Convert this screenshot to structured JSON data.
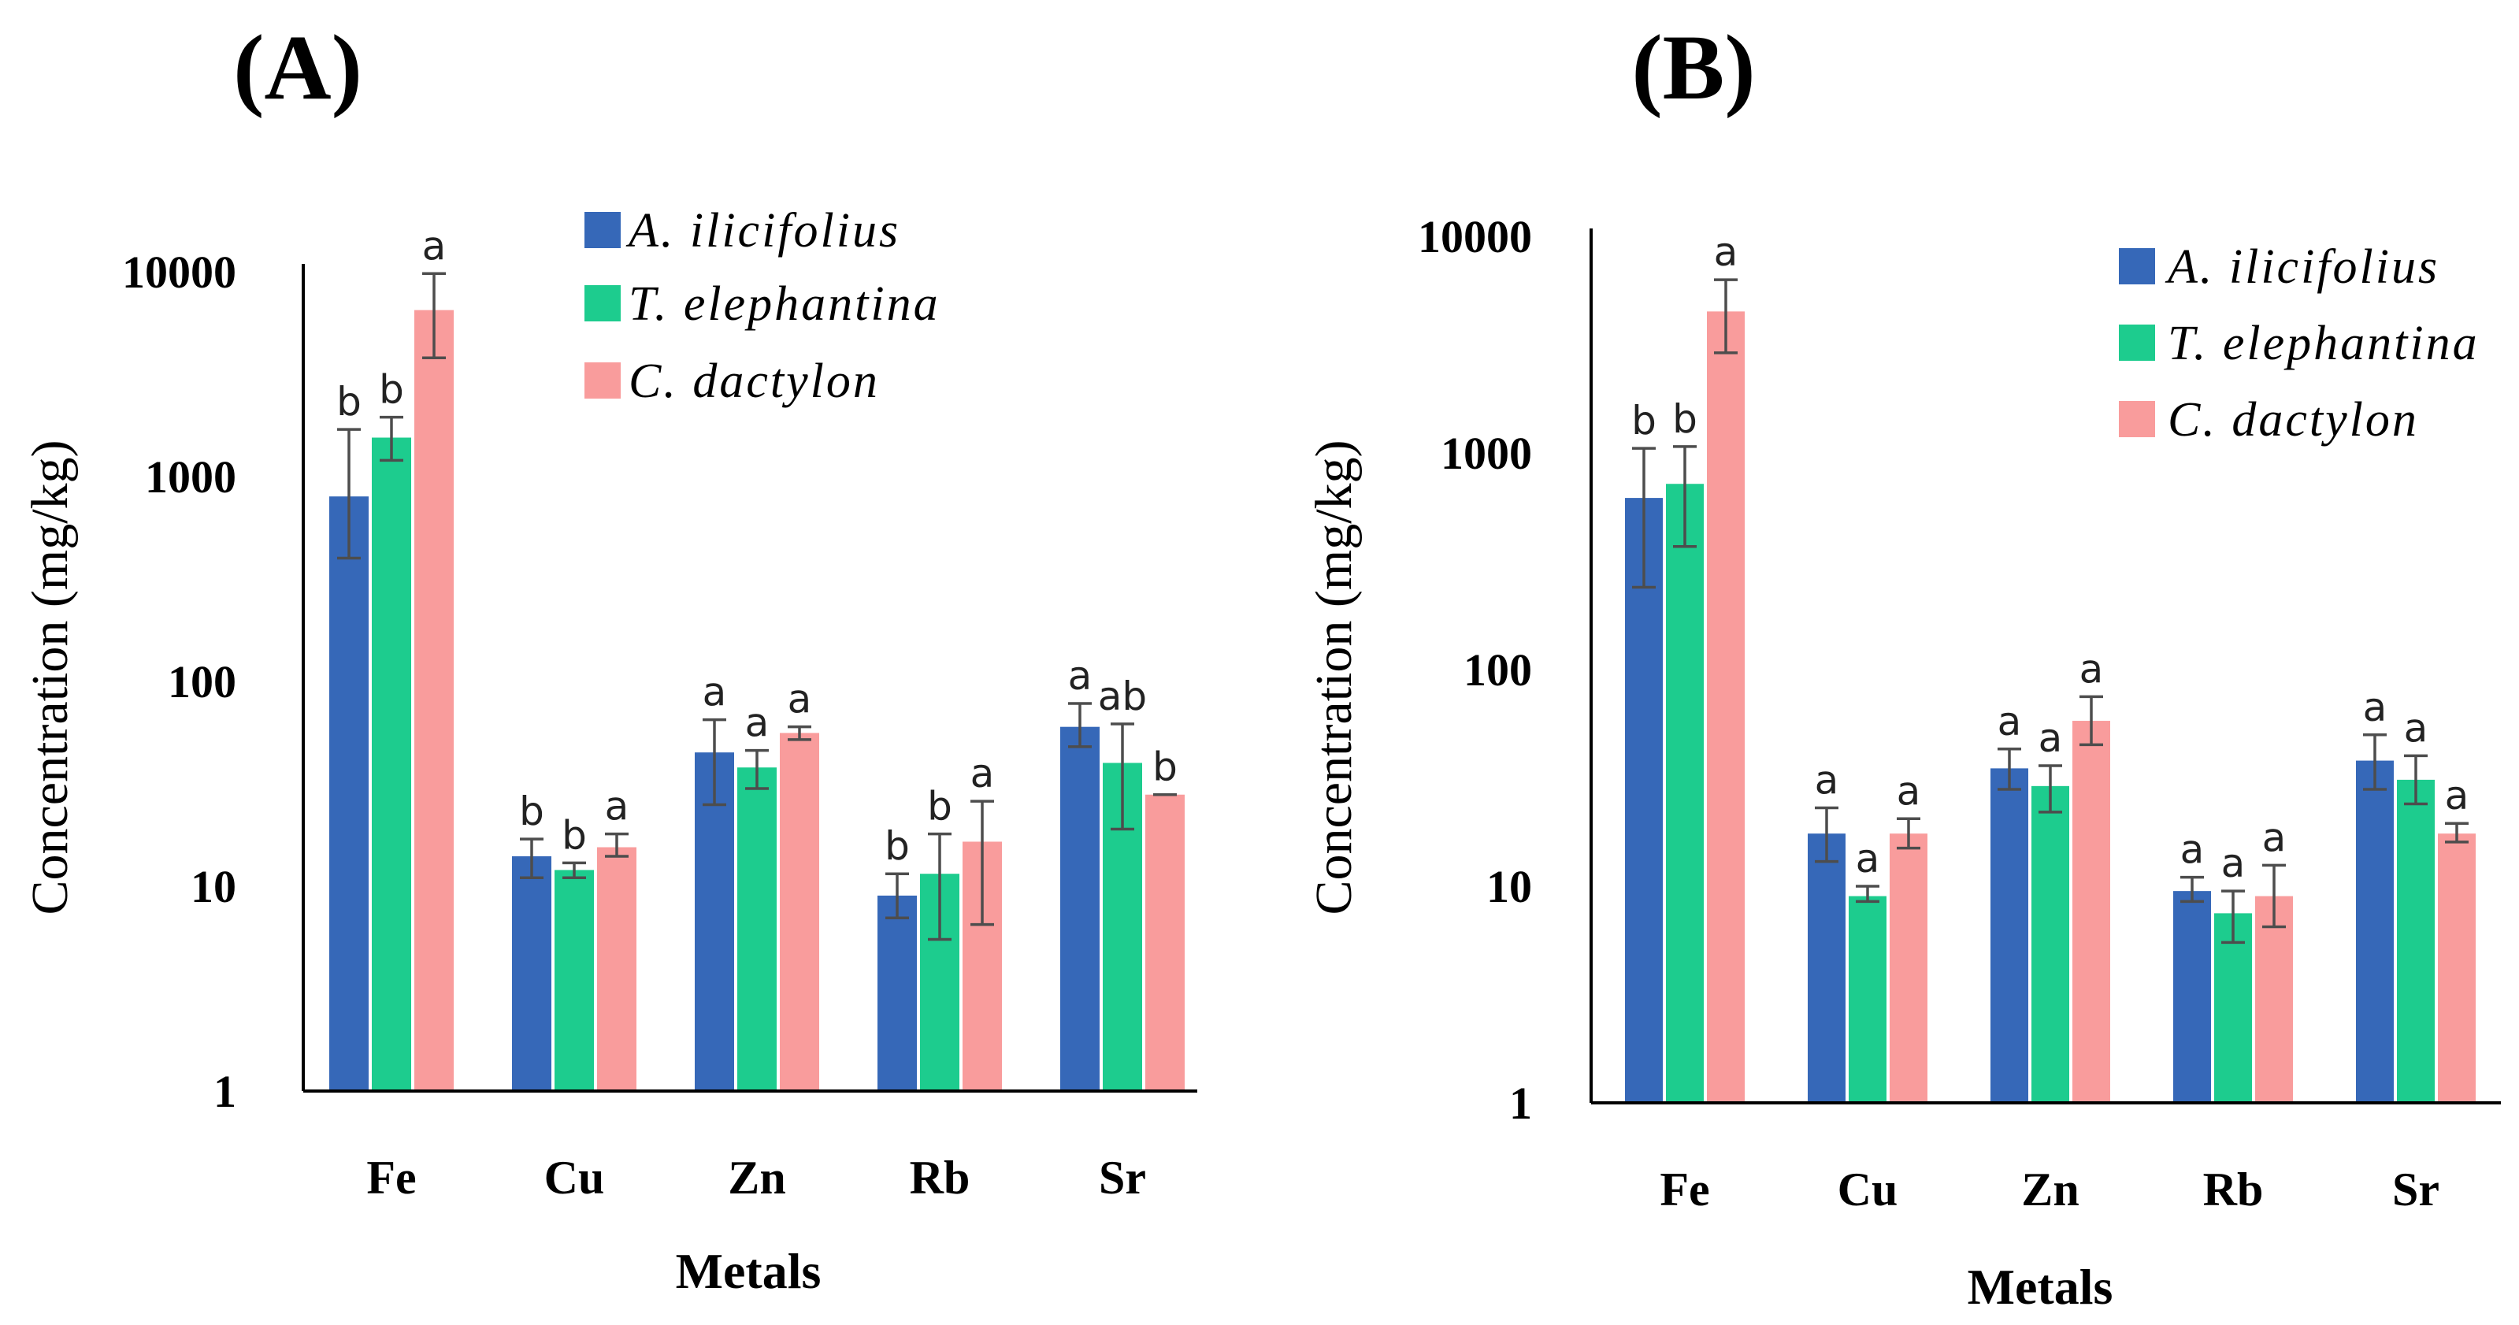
{
  "chart_data": [
    {
      "type": "bar",
      "panel": "(A)",
      "xlabel": "Metals",
      "ylabel": "Concentration (mg/kg)",
      "yscale": "log",
      "ylim": [
        1,
        10000
      ],
      "yticks": [
        "1",
        "10",
        "100",
        "1000",
        "10000"
      ],
      "categories": [
        "Fe",
        "Cu",
        "Zn",
        "Rb",
        "Sr"
      ],
      "legend_position": "top-right",
      "series": [
        {
          "name": "A. ilicifolius",
          "color": "#3668b8",
          "values": [
            800,
            14,
            45,
            9,
            60
          ],
          "err_low": [
            400,
            11,
            25,
            7,
            48
          ],
          "err_high": [
            1700,
            17,
            65,
            11.5,
            78
          ],
          "letters": [
            "b",
            "b",
            "a",
            "b",
            "a"
          ]
        },
        {
          "name": "T. elephantina",
          "color": "#1dcc8e",
          "values": [
            1550,
            12,
            38,
            11.5,
            40
          ],
          "err_low": [
            1200,
            11,
            30,
            5.5,
            19
          ],
          "err_high": [
            1950,
            13,
            46,
            18,
            62
          ],
          "letters": [
            "b",
            "b",
            "a",
            "b",
            "ab"
          ]
        },
        {
          "name": "C. dactylon",
          "color": "#f99c9c",
          "values": [
            6500,
            15.5,
            56,
            16.5,
            28
          ],
          "err_low": [
            3800,
            14,
            52,
            6.5,
            28
          ],
          "err_high": [
            9800,
            18,
            60,
            26,
            28
          ],
          "letters": [
            "a",
            "a",
            "a",
            "a",
            "b"
          ]
        }
      ]
    },
    {
      "type": "bar",
      "panel": "(B)",
      "xlabel": "Metals",
      "ylabel": "Concentration (mg/kg)",
      "yscale": "log",
      "ylim": [
        1,
        10000
      ],
      "yticks": [
        "1",
        "10",
        "100",
        "1000",
        "10000"
      ],
      "categories": [
        "Fe",
        "Cu",
        "Zn",
        "Rb",
        "Sr"
      ],
      "legend_position": "top-right",
      "series": [
        {
          "name": "A. ilicifolius",
          "color": "#3668b8",
          "values": [
            620,
            17.5,
            35,
            9.5,
            38
          ],
          "err_low": [
            240,
            13,
            28,
            8.5,
            28
          ],
          "err_high": [
            1050,
            23,
            43,
            11,
            50
          ],
          "letters": [
            "b",
            "a",
            "a",
            "a",
            "a"
          ]
        },
        {
          "name": "T. elephantina",
          "color": "#1dcc8e",
          "values": [
            720,
            9,
            29,
            7.5,
            31
          ],
          "err_low": [
            370,
            8.5,
            22,
            5.5,
            24
          ],
          "err_high": [
            1070,
            10,
            36,
            9.5,
            40
          ],
          "letters": [
            "b",
            "a",
            "a",
            "a",
            "a"
          ]
        },
        {
          "name": "C. dactylon",
          "color": "#f99c9c",
          "values": [
            4500,
            17.5,
            58,
            9,
            17.5
          ],
          "err_low": [
            2900,
            15,
            45,
            6.5,
            16
          ],
          "err_high": [
            6300,
            20.5,
            75,
            12.5,
            19.5
          ],
          "letters": [
            "a",
            "a",
            "a",
            "a",
            "a"
          ]
        }
      ]
    }
  ]
}
